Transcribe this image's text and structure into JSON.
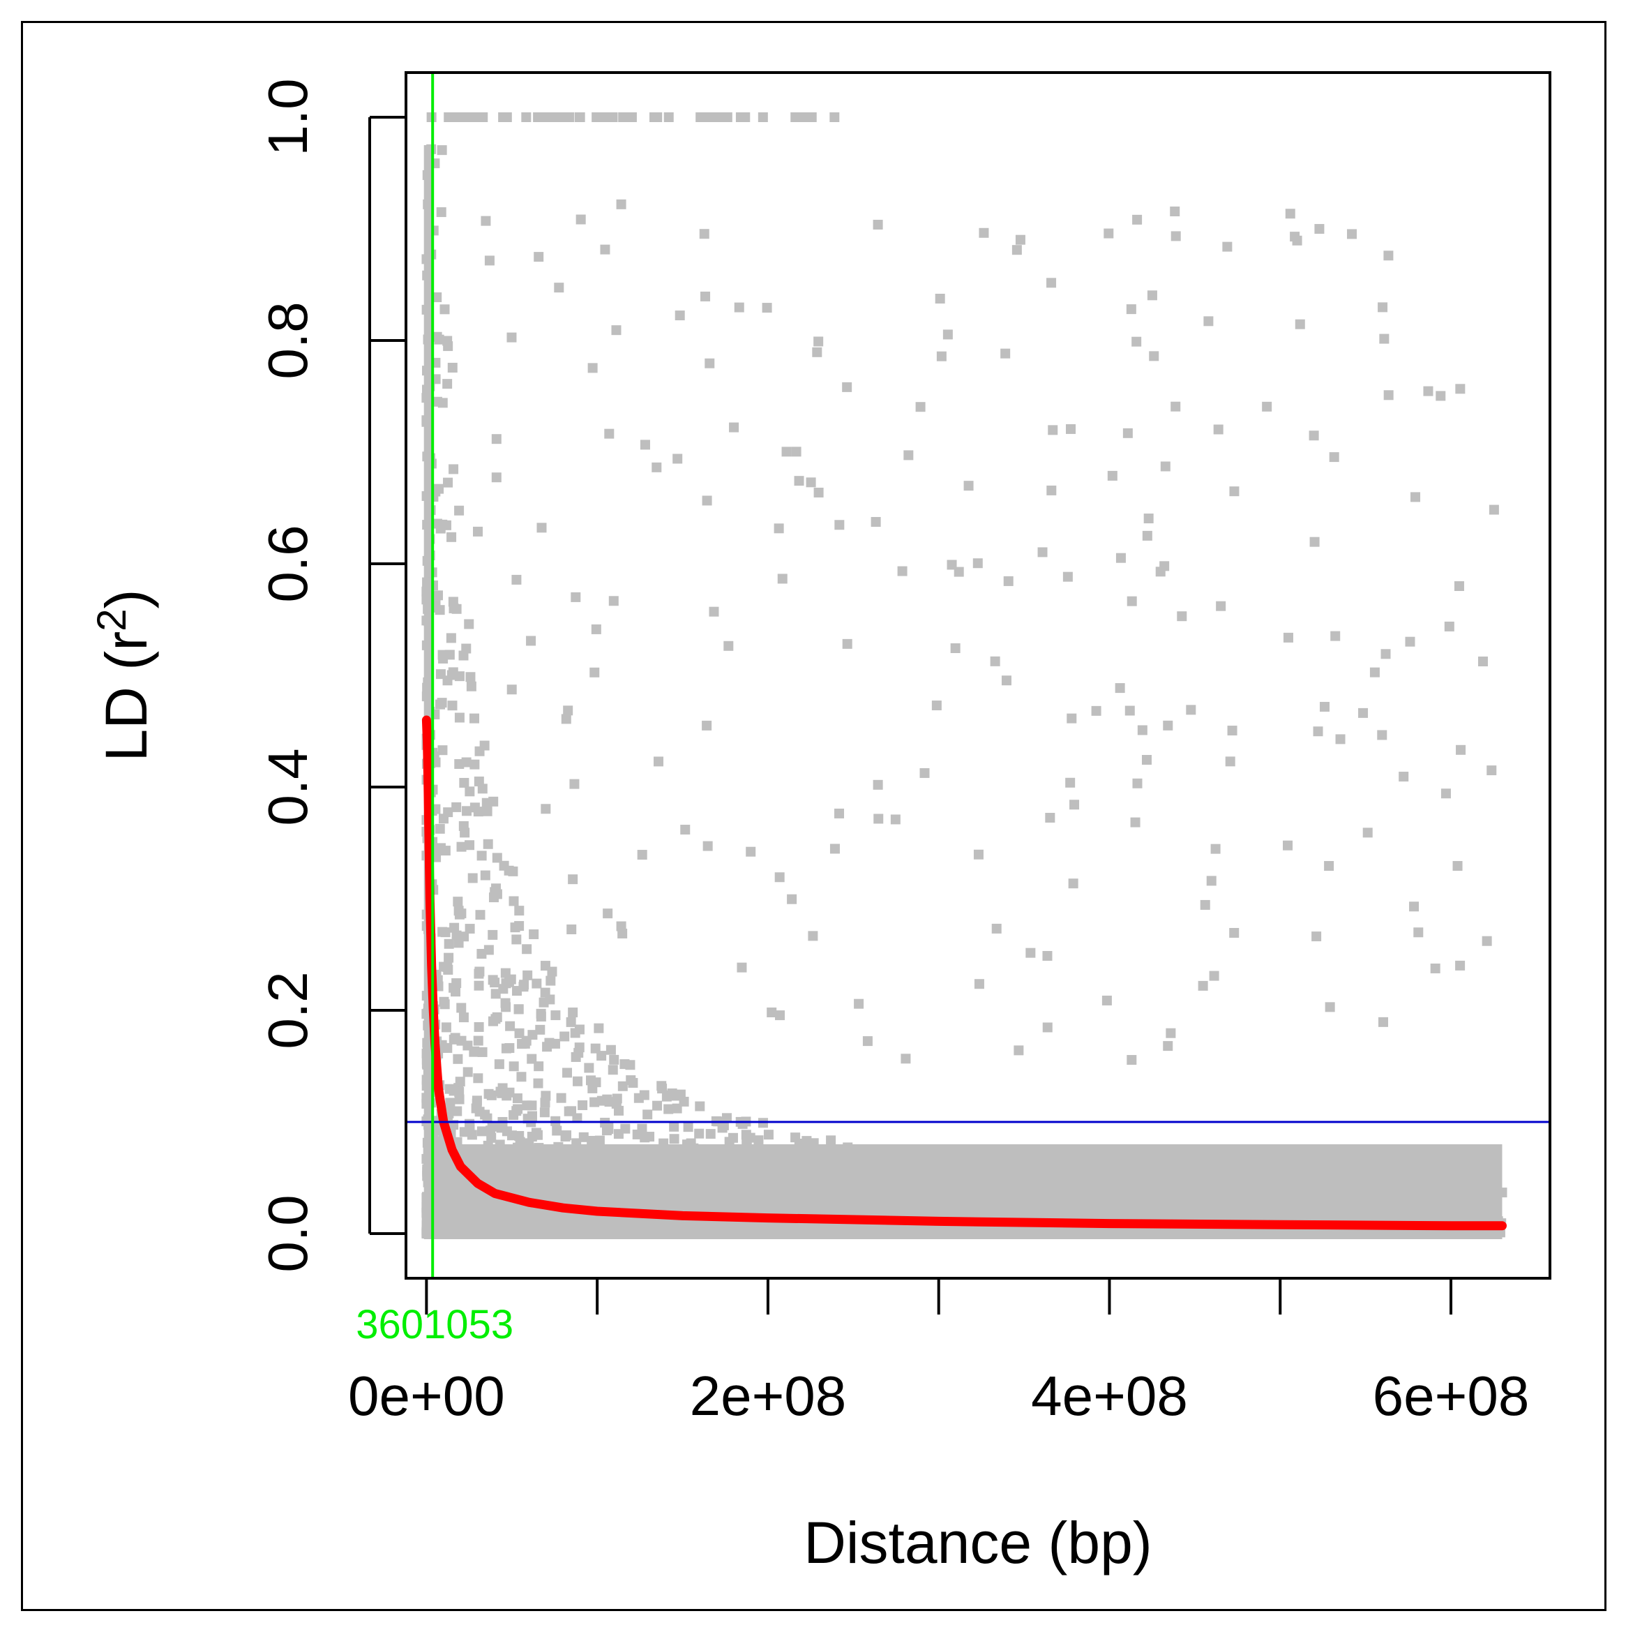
{
  "chart_data": {
    "type": "scatter",
    "xlabel": "Distance (bp)",
    "ylabel_main": "LD (r",
    "ylabel_sup": "2",
    "ylabel_close": ")",
    "xlim": [
      -12000000,
      658000000
    ],
    "ylim": [
      -0.04,
      1.04
    ],
    "x_ticks": [
      0,
      100000000,
      200000000,
      300000000,
      400000000,
      500000000,
      600000000
    ],
    "x_tick_labels": [
      {
        "value": 0,
        "label": "0e+00"
      },
      {
        "value": 200000000,
        "label": "2e+08"
      },
      {
        "value": 400000000,
        "label": "4e+08"
      },
      {
        "value": 600000000,
        "label": "6e+08"
      }
    ],
    "y_ticks": [
      {
        "value": 0.0,
        "label": "0.0"
      },
      {
        "value": 0.2,
        "label": "0.2"
      },
      {
        "value": 0.4,
        "label": "0.4"
      },
      {
        "value": 0.6,
        "label": "0.6"
      },
      {
        "value": 0.8,
        "label": "0.8"
      },
      {
        "value": 1.0,
        "label": "1.0"
      }
    ],
    "points_color": "#bebebe",
    "fit_curve": {
      "color": "#ff0000",
      "x": [
        0,
        500000,
        1000000,
        2000000,
        3000000,
        4000000,
        5000000,
        7000000,
        10000000,
        15000000,
        20000000,
        30000000,
        40000000,
        60000000,
        80000000,
        100000000,
        150000000,
        200000000,
        300000000,
        400000000,
        500000000,
        600000000,
        630000000
      ],
      "y": [
        0.46,
        0.44,
        0.4,
        0.3,
        0.24,
        0.2,
        0.17,
        0.13,
        0.1,
        0.075,
        0.06,
        0.045,
        0.036,
        0.028,
        0.023,
        0.02,
        0.016,
        0.014,
        0.011,
        0.009,
        0.008,
        0.007,
        0.007
      ]
    },
    "hline": {
      "y": 0.1,
      "color": "#0000cc"
    },
    "vline": {
      "x": 3601053,
      "label": "3601053",
      "color": "#00ee00"
    },
    "grid": false,
    "legend": "none"
  }
}
